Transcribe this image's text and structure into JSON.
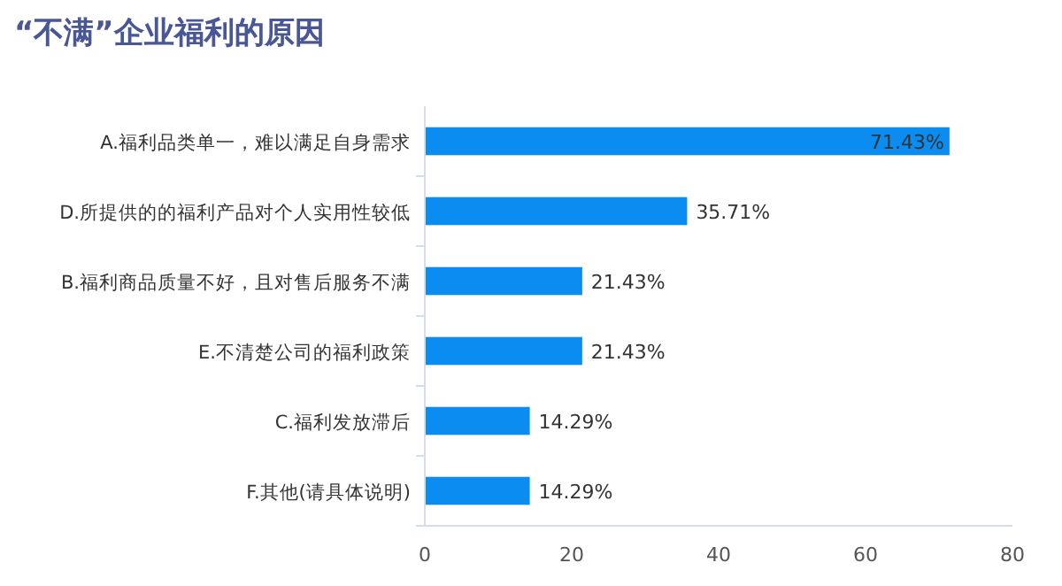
{
  "chart_data": {
    "type": "bar",
    "orientation": "horizontal",
    "title": "“不满”企业福利的原因",
    "categories": [
      "A.福利品类单一，难以满足自身需求",
      "D.所提供的的福利产品对个人实用性较低",
      "B.福利商品质量不好，且对售后服务不满",
      "E.不清楚公司的福利政策",
      "C.福利发放滞后",
      "F.其他(请具体说明)"
    ],
    "values": [
      71.43,
      35.71,
      21.43,
      21.43,
      14.29,
      14.29
    ],
    "value_labels": [
      "71.43%",
      "35.71%",
      "21.43%",
      "21.43%",
      "14.29%",
      "14.29%"
    ],
    "color": "#0a8cf0",
    "xlim": [
      0,
      80
    ],
    "xticks": [
      0,
      20,
      40,
      60,
      80
    ],
    "grid": false
  }
}
